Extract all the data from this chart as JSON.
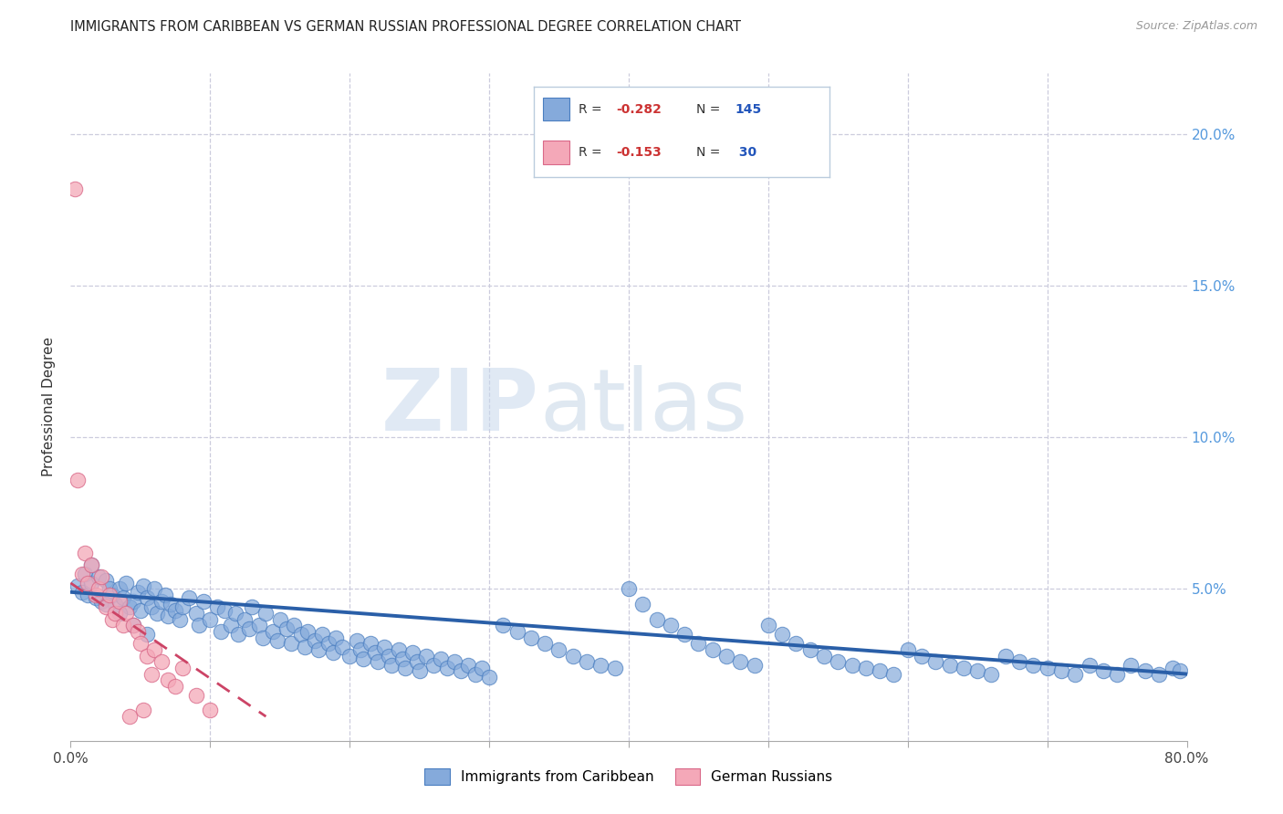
{
  "title": "IMMIGRANTS FROM CARIBBEAN VS GERMAN RUSSIAN PROFESSIONAL DEGREE CORRELATION CHART",
  "source": "Source: ZipAtlas.com",
  "ylabel": "Professional Degree",
  "xlim": [
    0.0,
    0.8
  ],
  "ylim": [
    0.0,
    0.22
  ],
  "blue_R": -0.282,
  "blue_N": 145,
  "pink_R": -0.153,
  "pink_N": 30,
  "blue_color": "#85AADB",
  "pink_color": "#F4A8B8",
  "blue_edge_color": "#4A7EC0",
  "pink_edge_color": "#D96888",
  "blue_line_color": "#2A5FA8",
  "pink_line_color": "#CC4466",
  "grid_color": "#CCCCDD",
  "watermark_zip": "ZIP",
  "watermark_atlas": "atlas",
  "legend_label_blue": "Immigrants from Caribbean",
  "legend_label_pink": "German Russians",
  "blue_scatter_x": [
    0.005,
    0.008,
    0.01,
    0.012,
    0.015,
    0.018,
    0.02,
    0.022,
    0.025,
    0.028,
    0.03,
    0.032,
    0.035,
    0.038,
    0.04,
    0.042,
    0.045,
    0.048,
    0.05,
    0.052,
    0.055,
    0.058,
    0.06,
    0.062,
    0.065,
    0.068,
    0.07,
    0.072,
    0.075,
    0.078,
    0.08,
    0.085,
    0.09,
    0.092,
    0.095,
    0.1,
    0.105,
    0.108,
    0.11,
    0.115,
    0.118,
    0.12,
    0.125,
    0.128,
    0.13,
    0.135,
    0.138,
    0.14,
    0.145,
    0.148,
    0.15,
    0.155,
    0.158,
    0.16,
    0.165,
    0.168,
    0.17,
    0.175,
    0.178,
    0.18,
    0.185,
    0.188,
    0.19,
    0.195,
    0.2,
    0.205,
    0.208,
    0.21,
    0.215,
    0.218,
    0.22,
    0.225,
    0.228,
    0.23,
    0.235,
    0.238,
    0.24,
    0.245,
    0.248,
    0.25,
    0.255,
    0.26,
    0.265,
    0.27,
    0.275,
    0.28,
    0.285,
    0.29,
    0.295,
    0.3,
    0.31,
    0.32,
    0.33,
    0.34,
    0.35,
    0.36,
    0.37,
    0.38,
    0.39,
    0.4,
    0.41,
    0.42,
    0.43,
    0.44,
    0.45,
    0.46,
    0.47,
    0.48,
    0.49,
    0.5,
    0.51,
    0.52,
    0.53,
    0.54,
    0.55,
    0.56,
    0.57,
    0.58,
    0.59,
    0.6,
    0.61,
    0.62,
    0.63,
    0.64,
    0.65,
    0.66,
    0.67,
    0.68,
    0.69,
    0.7,
    0.71,
    0.72,
    0.73,
    0.74,
    0.75,
    0.76,
    0.77,
    0.78,
    0.79,
    0.795,
    0.015,
    0.025,
    0.035,
    0.045,
    0.055
  ],
  "blue_scatter_y": [
    0.051,
    0.049,
    0.055,
    0.048,
    0.052,
    0.047,
    0.054,
    0.046,
    0.053,
    0.05,
    0.048,
    0.045,
    0.05,
    0.047,
    0.052,
    0.044,
    0.046,
    0.049,
    0.043,
    0.051,
    0.047,
    0.044,
    0.05,
    0.042,
    0.046,
    0.048,
    0.041,
    0.045,
    0.043,
    0.04,
    0.044,
    0.047,
    0.042,
    0.038,
    0.046,
    0.04,
    0.044,
    0.036,
    0.043,
    0.038,
    0.042,
    0.035,
    0.04,
    0.037,
    0.044,
    0.038,
    0.034,
    0.042,
    0.036,
    0.033,
    0.04,
    0.037,
    0.032,
    0.038,
    0.035,
    0.031,
    0.036,
    0.033,
    0.03,
    0.035,
    0.032,
    0.029,
    0.034,
    0.031,
    0.028,
    0.033,
    0.03,
    0.027,
    0.032,
    0.029,
    0.026,
    0.031,
    0.028,
    0.025,
    0.03,
    0.027,
    0.024,
    0.029,
    0.026,
    0.023,
    0.028,
    0.025,
    0.027,
    0.024,
    0.026,
    0.023,
    0.025,
    0.022,
    0.024,
    0.021,
    0.038,
    0.036,
    0.034,
    0.032,
    0.03,
    0.028,
    0.026,
    0.025,
    0.024,
    0.05,
    0.045,
    0.04,
    0.038,
    0.035,
    0.032,
    0.03,
    0.028,
    0.026,
    0.025,
    0.038,
    0.035,
    0.032,
    0.03,
    0.028,
    0.026,
    0.025,
    0.024,
    0.023,
    0.022,
    0.03,
    0.028,
    0.026,
    0.025,
    0.024,
    0.023,
    0.022,
    0.028,
    0.026,
    0.025,
    0.024,
    0.023,
    0.022,
    0.025,
    0.023,
    0.022,
    0.025,
    0.023,
    0.022,
    0.024,
    0.023,
    0.058,
    0.045,
    0.042,
    0.038,
    0.035
  ],
  "pink_scatter_x": [
    0.003,
    0.005,
    0.008,
    0.01,
    0.012,
    0.015,
    0.018,
    0.02,
    0.022,
    0.025,
    0.028,
    0.03,
    0.032,
    0.035,
    0.038,
    0.04,
    0.042,
    0.045,
    0.048,
    0.05,
    0.052,
    0.055,
    0.058,
    0.06,
    0.065,
    0.07,
    0.075,
    0.08,
    0.09,
    0.1
  ],
  "pink_scatter_y": [
    0.182,
    0.086,
    0.055,
    0.062,
    0.052,
    0.058,
    0.048,
    0.05,
    0.054,
    0.044,
    0.048,
    0.04,
    0.042,
    0.046,
    0.038,
    0.042,
    0.008,
    0.038,
    0.036,
    0.032,
    0.01,
    0.028,
    0.022,
    0.03,
    0.026,
    0.02,
    0.018,
    0.024,
    0.015,
    0.01
  ],
  "blue_trend_x": [
    0.0,
    0.8
  ],
  "blue_trend_y": [
    0.049,
    0.022
  ],
  "pink_trend_x": [
    0.0,
    0.14
  ],
  "pink_trend_y": [
    0.052,
    0.008
  ]
}
